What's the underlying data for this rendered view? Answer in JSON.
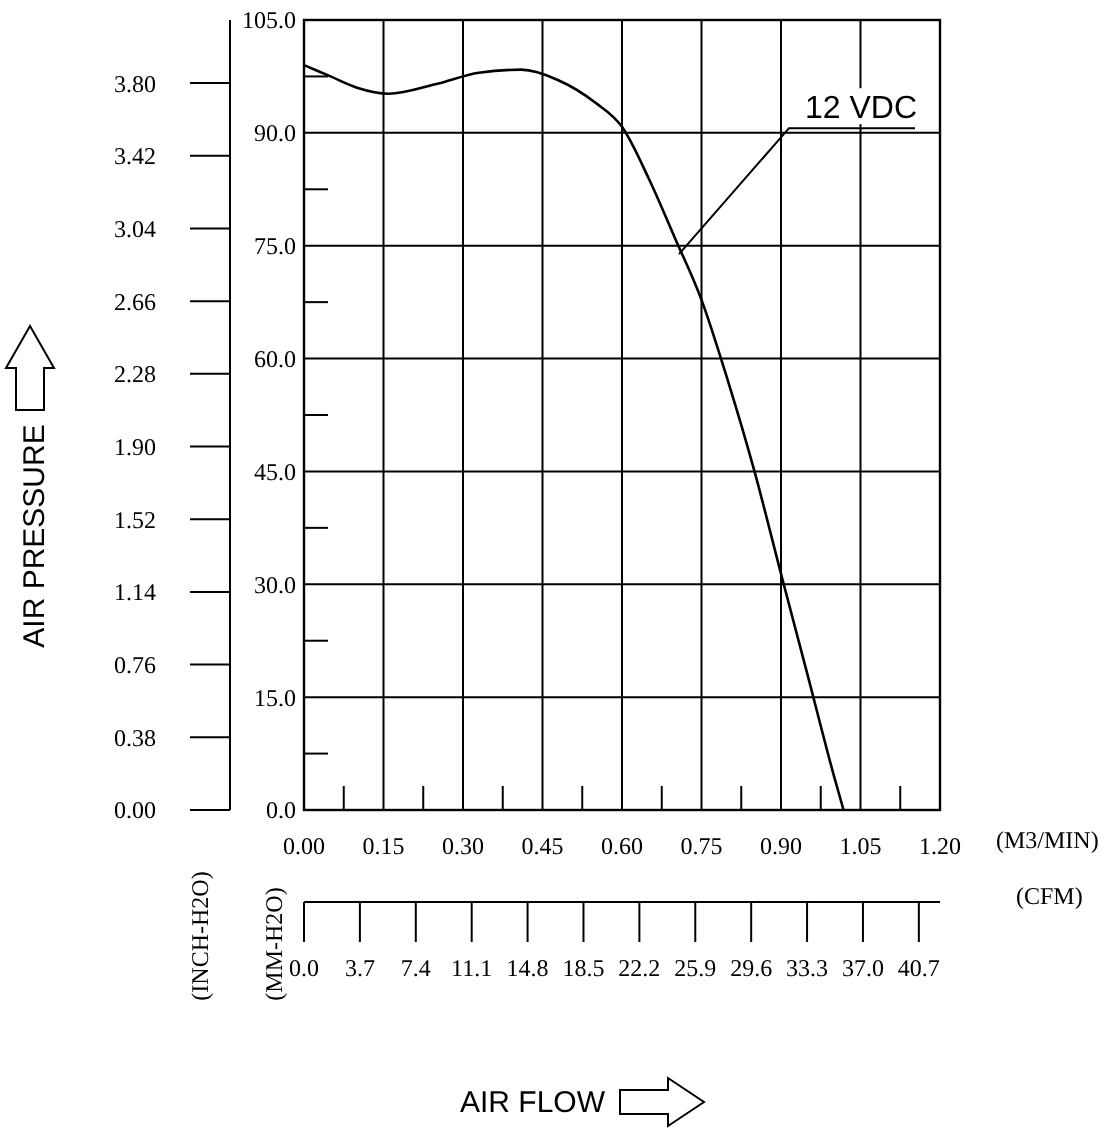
{
  "chart_data": {
    "type": "line",
    "xlabel": "AIR FLOW",
    "x2label": "(CFM)",
    "y2label": "(INCH-H2O)",
    "annotations": [
      "(M3/MIN)",
      "(MM-H2O)",
      "AIR PRESSURE"
    ],
    "series": [
      {
        "name": "12 VDC",
        "color": "#000000",
        "x": [
          0,
          0.05,
          0.1,
          0.16,
          0.25,
          0.33,
          0.41,
          0.48,
          0.55,
          0.6,
          0.65,
          0.7,
          0.75,
          0.8,
          0.85,
          0.9,
          0.95,
          1.0,
          1.018
        ],
        "values": [
          99,
          97.5,
          96,
          95.2,
          96.5,
          98,
          98.4,
          97,
          94,
          90.8,
          84,
          76,
          67.8,
          57,
          45,
          31.4,
          18,
          4.5,
          0
        ]
      }
    ],
    "xlim": [
      0,
      1.2
    ],
    "xticks": [
      {
        "value": 0,
        "label": "0.00"
      },
      {
        "value": 0.075,
        "label": null
      },
      {
        "value": 0.15,
        "label": "0.15"
      },
      {
        "value": 0.225,
        "label": null
      },
      {
        "value": 0.3,
        "label": "0.30"
      },
      {
        "value": 0.375,
        "label": null
      },
      {
        "value": 0.45,
        "label": "0.45"
      },
      {
        "value": 0.525,
        "label": null
      },
      {
        "value": 0.6,
        "label": "0.60"
      },
      {
        "value": 0.675,
        "label": null
      },
      {
        "value": 0.75,
        "label": "0.75"
      },
      {
        "value": 0.825,
        "label": null
      },
      {
        "value": 0.9,
        "label": "0.90"
      },
      {
        "value": 0.975,
        "label": null
      },
      {
        "value": 1.05,
        "label": "1.05"
      },
      {
        "value": 1.125,
        "label": null
      },
      {
        "value": 1.2,
        "label": "1.20"
      }
    ],
    "ylim": [
      0,
      105
    ],
    "yticks": [
      {
        "value": 0,
        "label": "0.0"
      },
      {
        "value": 7.5,
        "label": null
      },
      {
        "value": 15,
        "label": "15.0"
      },
      {
        "value": 22.5,
        "label": null
      },
      {
        "value": 30,
        "label": "30.0"
      },
      {
        "value": 37.5,
        "label": null
      },
      {
        "value": 45,
        "label": "45.0"
      },
      {
        "value": 52.5,
        "label": null
      },
      {
        "value": 60,
        "label": "60.0"
      },
      {
        "value": 67.5,
        "label": null
      },
      {
        "value": 75,
        "label": "75.0"
      },
      {
        "value": 82.5,
        "label": null
      },
      {
        "value": 90,
        "label": "90.0"
      },
      {
        "value": 97.5,
        "label": null
      },
      {
        "value": 105,
        "label": "105.0"
      }
    ],
    "x2lim": [
      0,
      42.1
    ],
    "x2ticks": [
      {
        "value": 0,
        "label": "0.0"
      },
      {
        "value": 3.7,
        "label": "3.7"
      },
      {
        "value": 7.4,
        "label": "7.4"
      },
      {
        "value": 11.1,
        "label": "11.1"
      },
      {
        "value": 14.8,
        "label": "14.8"
      },
      {
        "value": 18.5,
        "label": "18.5"
      },
      {
        "value": 22.2,
        "label": "22.2"
      },
      {
        "value": 25.9,
        "label": "25.9"
      },
      {
        "value": 29.6,
        "label": "29.6"
      },
      {
        "value": 33.3,
        "label": "33.3"
      },
      {
        "value": 37,
        "label": "37.0"
      },
      {
        "value": 40.7,
        "label": "40.7"
      }
    ],
    "y2lim": [
      0,
      4.13
    ],
    "y2ticks": [
      {
        "value": 0,
        "label": "0.00"
      },
      {
        "value": 0.38,
        "label": "0.38"
      },
      {
        "value": 0.76,
        "label": "0.76"
      },
      {
        "value": 1.14,
        "label": "1.14"
      },
      {
        "value": 1.52,
        "label": "1.52"
      },
      {
        "value": 1.9,
        "label": "1.90"
      },
      {
        "value": 2.28,
        "label": "2.28"
      },
      {
        "value": 2.66,
        "label": "2.66"
      },
      {
        "value": 3.04,
        "label": "3.04"
      },
      {
        "value": 3.42,
        "label": "3.42"
      },
      {
        "value": 3.8,
        "label": "3.80"
      }
    ],
    "grid": true,
    "legend": false,
    "marker": "none",
    "line_style": "solid"
  }
}
